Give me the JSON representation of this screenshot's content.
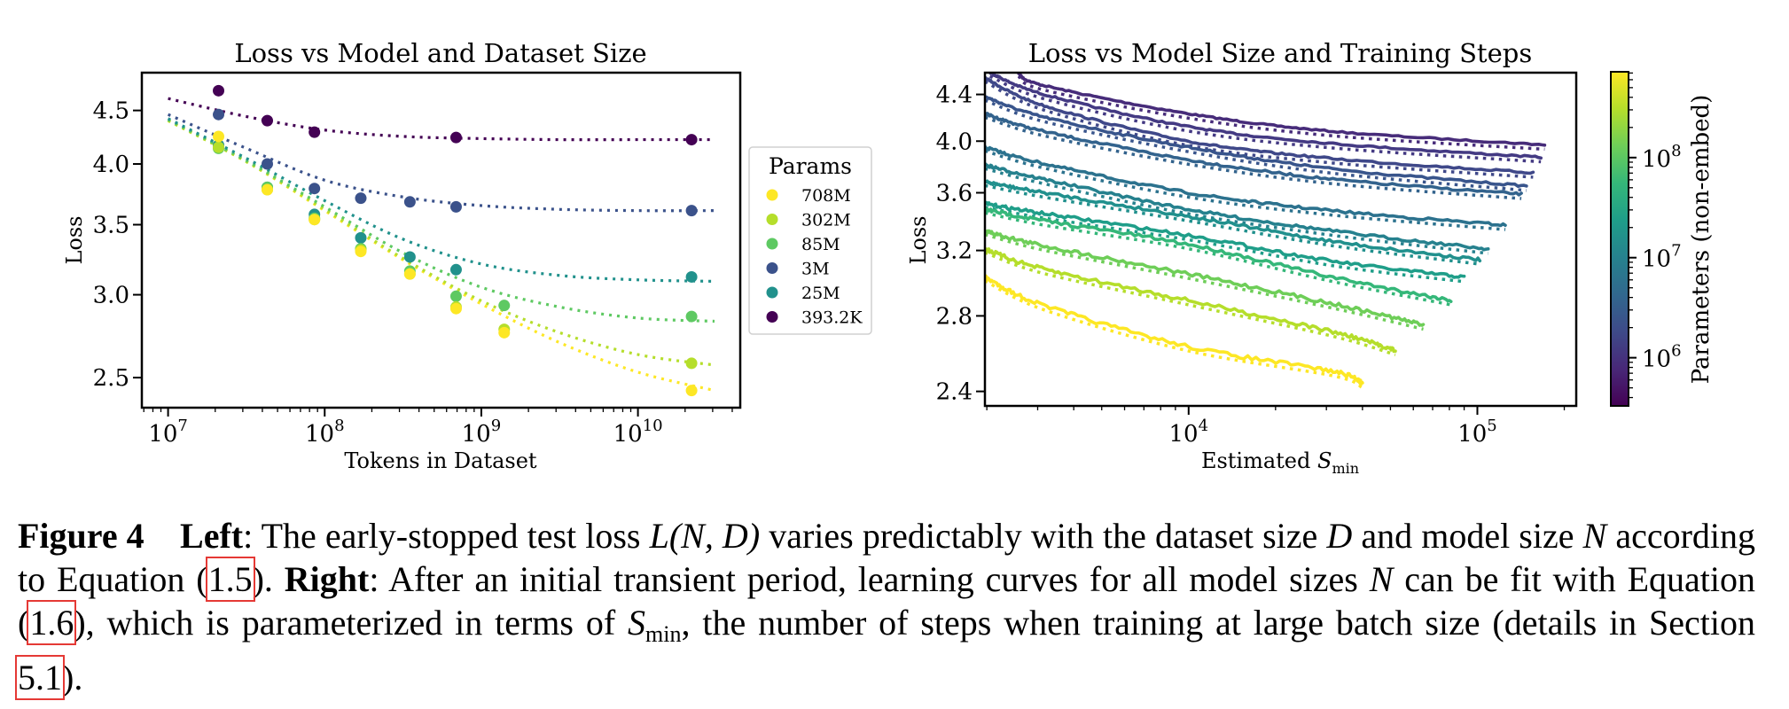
{
  "chart_data": [
    {
      "type": "scatter",
      "title": "Loss vs Model and Dataset Size",
      "xlabel": "Tokens in Dataset",
      "ylabel": "Loss",
      "xscale": "log",
      "yscale": "log",
      "xlim": [
        6800000.0,
        45000000000.0
      ],
      "ylim": [
        2.34,
        4.89
      ],
      "xticks": [
        {
          "value": 10000000.0,
          "label_base": "10",
          "label_exp": "7"
        },
        {
          "value": 100000000.0,
          "label_base": "10",
          "label_exp": "8"
        },
        {
          "value": 1000000000.0,
          "label_base": "10",
          "label_exp": "9"
        },
        {
          "value": 10000000000.0,
          "label_base": "10",
          "label_exp": "10"
        }
      ],
      "yticks": [
        {
          "value": 2.5,
          "label": "2.5"
        },
        {
          "value": 3.0,
          "label": "3.0"
        },
        {
          "value": 3.5,
          "label": "3.5"
        },
        {
          "value": 4.0,
          "label": "4.0"
        },
        {
          "value": 4.5,
          "label": "4.5"
        }
      ],
      "legend": {
        "title": "Params",
        "placement": "outside-right"
      },
      "fit_log10_x": [
        7,
        7.5,
        8,
        8.5,
        9,
        9.5,
        10,
        10.5
      ],
      "series": [
        {
          "name": "708M",
          "color": "#fde725",
          "x": [
            21000000.0,
            43000000.0,
            86000000.0,
            170000000.0,
            350000000.0,
            690000000.0,
            1400000000.0,
            22000000000.0
          ],
          "y": [
            4.25,
            3.78,
            3.54,
            3.3,
            3.14,
            2.91,
            2.76,
            2.43
          ],
          "fit": [
            4.4,
            4.02,
            3.61,
            3.24,
            2.94,
            2.7,
            2.53,
            2.43
          ]
        },
        {
          "name": "302M",
          "color": "#b5de2b",
          "x": [
            21000000.0,
            43000000.0,
            86000000.0,
            170000000.0,
            350000000.0,
            690000000.0,
            1400000000.0,
            22000000000.0
          ],
          "y": [
            4.15,
            3.78,
            3.54,
            3.31,
            3.14,
            2.92,
            2.78,
            2.58
          ],
          "fit": [
            4.4,
            4.02,
            3.62,
            3.25,
            2.96,
            2.76,
            2.63,
            2.57
          ]
        },
        {
          "name": "85M",
          "color": "#5ec962",
          "x": [
            21000000.0,
            43000000.0,
            86000000.0,
            170000000.0,
            350000000.0,
            690000000.0,
            1400000000.0,
            22000000000.0
          ],
          "y": [
            4.14,
            3.8,
            3.55,
            3.32,
            3.16,
            2.99,
            2.93,
            2.86
          ],
          "fit": [
            4.41,
            4.03,
            3.64,
            3.29,
            3.05,
            2.92,
            2.85,
            2.83
          ]
        },
        {
          "name": "3M",
          "color": "#3b528b",
          "x": [
            21000000.0,
            43000000.0,
            86000000.0,
            170000000.0,
            350000000.0,
            690000000.0,
            22000000000.0
          ],
          "y": [
            4.46,
            4.0,
            3.79,
            3.71,
            3.68,
            3.64,
            3.61
          ],
          "fit": [
            4.46,
            4.14,
            3.86,
            3.72,
            3.65,
            3.62,
            3.61,
            3.61
          ]
        },
        {
          "name": "25M",
          "color": "#21918c",
          "x": [
            21000000.0,
            43000000.0,
            86000000.0,
            170000000.0,
            350000000.0,
            690000000.0,
            22000000000.0
          ],
          "y": [
            4.17,
            3.8,
            3.58,
            3.4,
            3.26,
            3.17,
            3.12
          ],
          "fit": [
            4.42,
            4.05,
            3.69,
            3.39,
            3.21,
            3.13,
            3.1,
            3.09
          ]
        },
        {
          "name": "393.2K",
          "color": "#440154",
          "x": [
            21000000.0,
            43000000.0,
            86000000.0,
            690000000.0,
            22000000000.0
          ],
          "y": [
            4.7,
            4.4,
            4.29,
            4.24,
            4.22
          ],
          "fit": [
            4.62,
            4.44,
            4.31,
            4.25,
            4.23,
            4.22,
            4.22,
            4.22
          ]
        }
      ]
    },
    {
      "type": "line",
      "title": "Loss vs Model Size and Training Steps",
      "xlabel_main": "Estimated ",
      "xlabel_sym": "S",
      "xlabel_sub": "min",
      "ylabel": "Loss",
      "xscale": "log",
      "yscale": "log",
      "xlim": [
        1970,
        220000.0
      ],
      "ylim": [
        2.33,
        4.6
      ],
      "xticks": [
        {
          "value": 10000.0,
          "label_base": "10",
          "label_exp": "4"
        },
        {
          "value": 100000.0,
          "label_base": "10",
          "label_exp": "5"
        }
      ],
      "yticks": [
        {
          "value": 2.4,
          "label": "2.4"
        },
        {
          "value": 2.8,
          "label": "2.8"
        },
        {
          "value": 3.2,
          "label": "3.2"
        },
        {
          "value": 3.6,
          "label": "3.6"
        },
        {
          "value": 4.0,
          "label": "4.0"
        },
        {
          "value": 4.4,
          "label": "4.4"
        }
      ],
      "colorbar": {
        "label": "Parameters (non-embed)",
        "scale": "log",
        "range": [
          330000.0,
          720000000.0
        ],
        "ticks": [
          {
            "value": 1000000.0,
            "label_base": "10",
            "label_exp": "6"
          },
          {
            "value": 10000000.0,
            "label_base": "10",
            "label_exp": "7"
          },
          {
            "value": 100000000.0,
            "label_base": "10",
            "label_exp": "8"
          }
        ],
        "colormap": [
          "#440154",
          "#482878",
          "#3e4a89",
          "#31688e",
          "#26828e",
          "#1f9e89",
          "#35b779",
          "#6ece58",
          "#b5de2b",
          "#fde725"
        ]
      },
      "series": [
        {
          "color": "#472c7a",
          "x": [
            2570,
            3162,
            10000.0,
            31623,
            171000.0
          ],
          "y": [
            4.6,
            4.48,
            4.23,
            4.08,
            3.97
          ]
        },
        {
          "color": "#443a83",
          "x": [
            2050,
            3162,
            10000.0,
            31623,
            166000.0
          ],
          "y": [
            4.6,
            4.4,
            4.12,
            3.98,
            3.87
          ]
        },
        {
          "color": "#3f4889",
          "x": [
            1970,
            3162,
            10000.0,
            31623,
            156000.0
          ],
          "y": [
            4.55,
            4.3,
            4.0,
            3.86,
            3.75
          ]
        },
        {
          "color": "#39558c",
          "x": [
            1970,
            3162,
            10000.0,
            31623,
            148000.0
          ],
          "y": [
            4.38,
            4.2,
            3.95,
            3.78,
            3.65
          ]
        },
        {
          "color": "#33638d",
          "x": [
            1970,
            3162,
            10000.0,
            31623,
            142000.0
          ],
          "y": [
            4.23,
            4.08,
            3.85,
            3.7,
            3.59
          ]
        },
        {
          "color": "#2c728e",
          "x": [
            1970,
            3162,
            10000.0,
            31623,
            125000.0
          ],
          "y": [
            3.95,
            3.82,
            3.6,
            3.47,
            3.37
          ]
        },
        {
          "color": "#26818e",
          "x": [
            1970,
            3162,
            10000.0,
            31623,
            109000.0
          ],
          "y": [
            3.81,
            3.7,
            3.48,
            3.33,
            3.21
          ]
        },
        {
          "color": "#21908d",
          "x": [
            1970,
            3162,
            10000.0,
            31623,
            102000.0
          ],
          "y": [
            3.68,
            3.6,
            3.43,
            3.26,
            3.14
          ]
        },
        {
          "color": "#1f9e89",
          "x": [
            1970,
            3162,
            10000.0,
            31623,
            90000.0
          ],
          "y": [
            3.52,
            3.45,
            3.3,
            3.13,
            3.03
          ]
        },
        {
          "color": "#35b779",
          "x": [
            1970,
            3162,
            10000.0,
            31623,
            81000.0
          ],
          "y": [
            3.48,
            3.4,
            3.24,
            3.03,
            2.89
          ]
        },
        {
          "color": "#6ece58",
          "x": [
            1970,
            3162,
            10000.0,
            31623,
            65000.0
          ],
          "y": [
            3.33,
            3.23,
            3.05,
            2.87,
            2.75
          ]
        },
        {
          "color": "#b5de2b",
          "x": [
            1970,
            3162,
            10000.0,
            31623,
            52000.0
          ],
          "y": [
            3.21,
            3.08,
            2.89,
            2.71,
            2.61
          ]
        },
        {
          "color": "#fde725",
          "x": [
            1970,
            3162,
            10000.0,
            31623,
            40000.0
          ],
          "y": [
            3.03,
            2.86,
            2.63,
            2.5,
            2.44
          ]
        }
      ]
    }
  ],
  "caption": {
    "fig_label": "Figure 4",
    "left_label": "Left",
    "t1": ": The early-stopped test loss ",
    "math_L": "L",
    "math_args": "(N, D)",
    "t2": " varies predictably with the dataset size ",
    "math_D": "D",
    "t3": " and model size ",
    "math_N1": "N",
    "t4": " according to Equation (",
    "ref1": "1.5",
    "t5": "). ",
    "right_label": "Right",
    "t6": ": After an initial transient period, learning curves for all model sizes ",
    "math_N2": "N",
    "t7": " can be fit with Equation (",
    "ref2": "1.6",
    "t8": "), which is parameterized in terms of ",
    "math_S": "S",
    "math_S_sub": "min",
    "t9": ", the number of steps when training at large batch size (details in Section ",
    "ref3": "5.1",
    "t10": ")."
  }
}
